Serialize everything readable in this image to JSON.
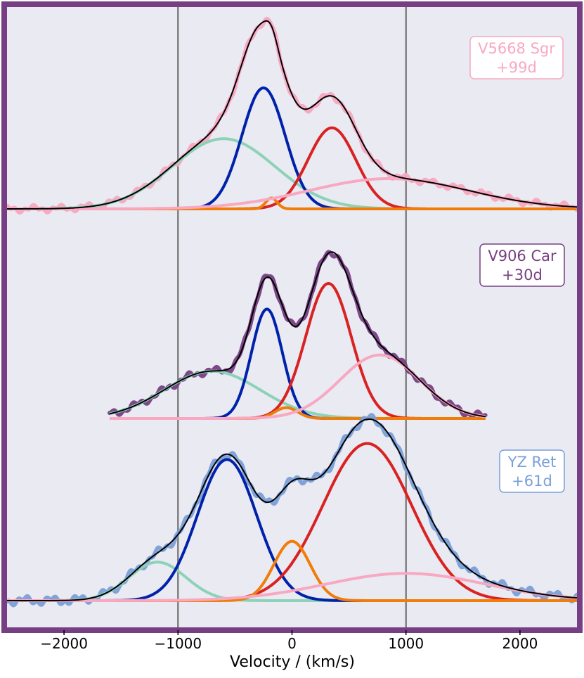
{
  "chart_data": {
    "type": "line",
    "title": "",
    "xlabel": "Velocity / (km/s)",
    "ylabel": "",
    "xlim": [
      -2500,
      2500
    ],
    "xticks": [
      -2000,
      -1000,
      0,
      1000,
      2000
    ],
    "xtick_labels": [
      "−2000",
      "−1000",
      "0",
      "1000",
      "2000"
    ],
    "vlines": [
      -1000,
      1000
    ],
    "grid": false,
    "colors": {
      "frame": "#773f83",
      "background": "#eaeaf2",
      "vline": "#808080",
      "fit_total": "#000000",
      "blue_component": "#0022aa",
      "red_component": "#d92222",
      "green_component": "#8dd2b8",
      "orange_component": "#f07d0a",
      "pink_component": "#f8a8c0"
    },
    "panels": [
      {
        "name": "V5668 Sgr",
        "label": "V5668 Sgr",
        "epoch": "+99d",
        "data_color": "#f8a8c0",
        "data_range": [
          -2500,
          2500
        ],
        "components": [
          {
            "name": "green",
            "amplitude": 0.58,
            "center": -600,
            "sigma": 450
          },
          {
            "name": "blue",
            "amplitude": 1.0,
            "center": -250,
            "sigma": 190
          },
          {
            "name": "orange",
            "amplitude": 0.09,
            "center": -180,
            "sigma": 50
          },
          {
            "name": "red",
            "amplitude": 0.67,
            "center": 350,
            "sigma": 210
          },
          {
            "name": "pink",
            "amplitude": 0.25,
            "center": 850,
            "sigma": 700
          }
        ]
      },
      {
        "name": "V906 Car",
        "label": "V906 Car",
        "epoch": "+30d",
        "data_color": "#773f83",
        "data_range": [
          -1600,
          1700
        ],
        "components": [
          {
            "name": "green",
            "amplitude": 0.35,
            "center": -700,
            "sigma": 420
          },
          {
            "name": "blue",
            "amplitude": 0.81,
            "center": -220,
            "sigma": 135
          },
          {
            "name": "orange",
            "amplitude": 0.08,
            "center": -50,
            "sigma": 100
          },
          {
            "name": "red",
            "amplitude": 1.0,
            "center": 320,
            "sigma": 200
          },
          {
            "name": "pink",
            "amplitude": 0.47,
            "center": 770,
            "sigma": 350
          }
        ]
      },
      {
        "name": "YZ Ret",
        "label": "YZ Ret",
        "epoch": "+61d",
        "data_color": "#7a9fd8",
        "data_range": [
          -2500,
          2500
        ],
        "components": [
          {
            "name": "green",
            "amplitude": 0.24,
            "center": -1180,
            "sigma": 250
          },
          {
            "name": "blue",
            "amplitude": 0.88,
            "center": -570,
            "sigma": 260
          },
          {
            "name": "orange",
            "amplitude": 0.37,
            "center": 0,
            "sigma": 160
          },
          {
            "name": "red",
            "amplitude": 0.98,
            "center": 660,
            "sigma": 390
          },
          {
            "name": "pink",
            "amplitude": 0.17,
            "center": 1000,
            "sigma": 700
          }
        ]
      }
    ]
  }
}
